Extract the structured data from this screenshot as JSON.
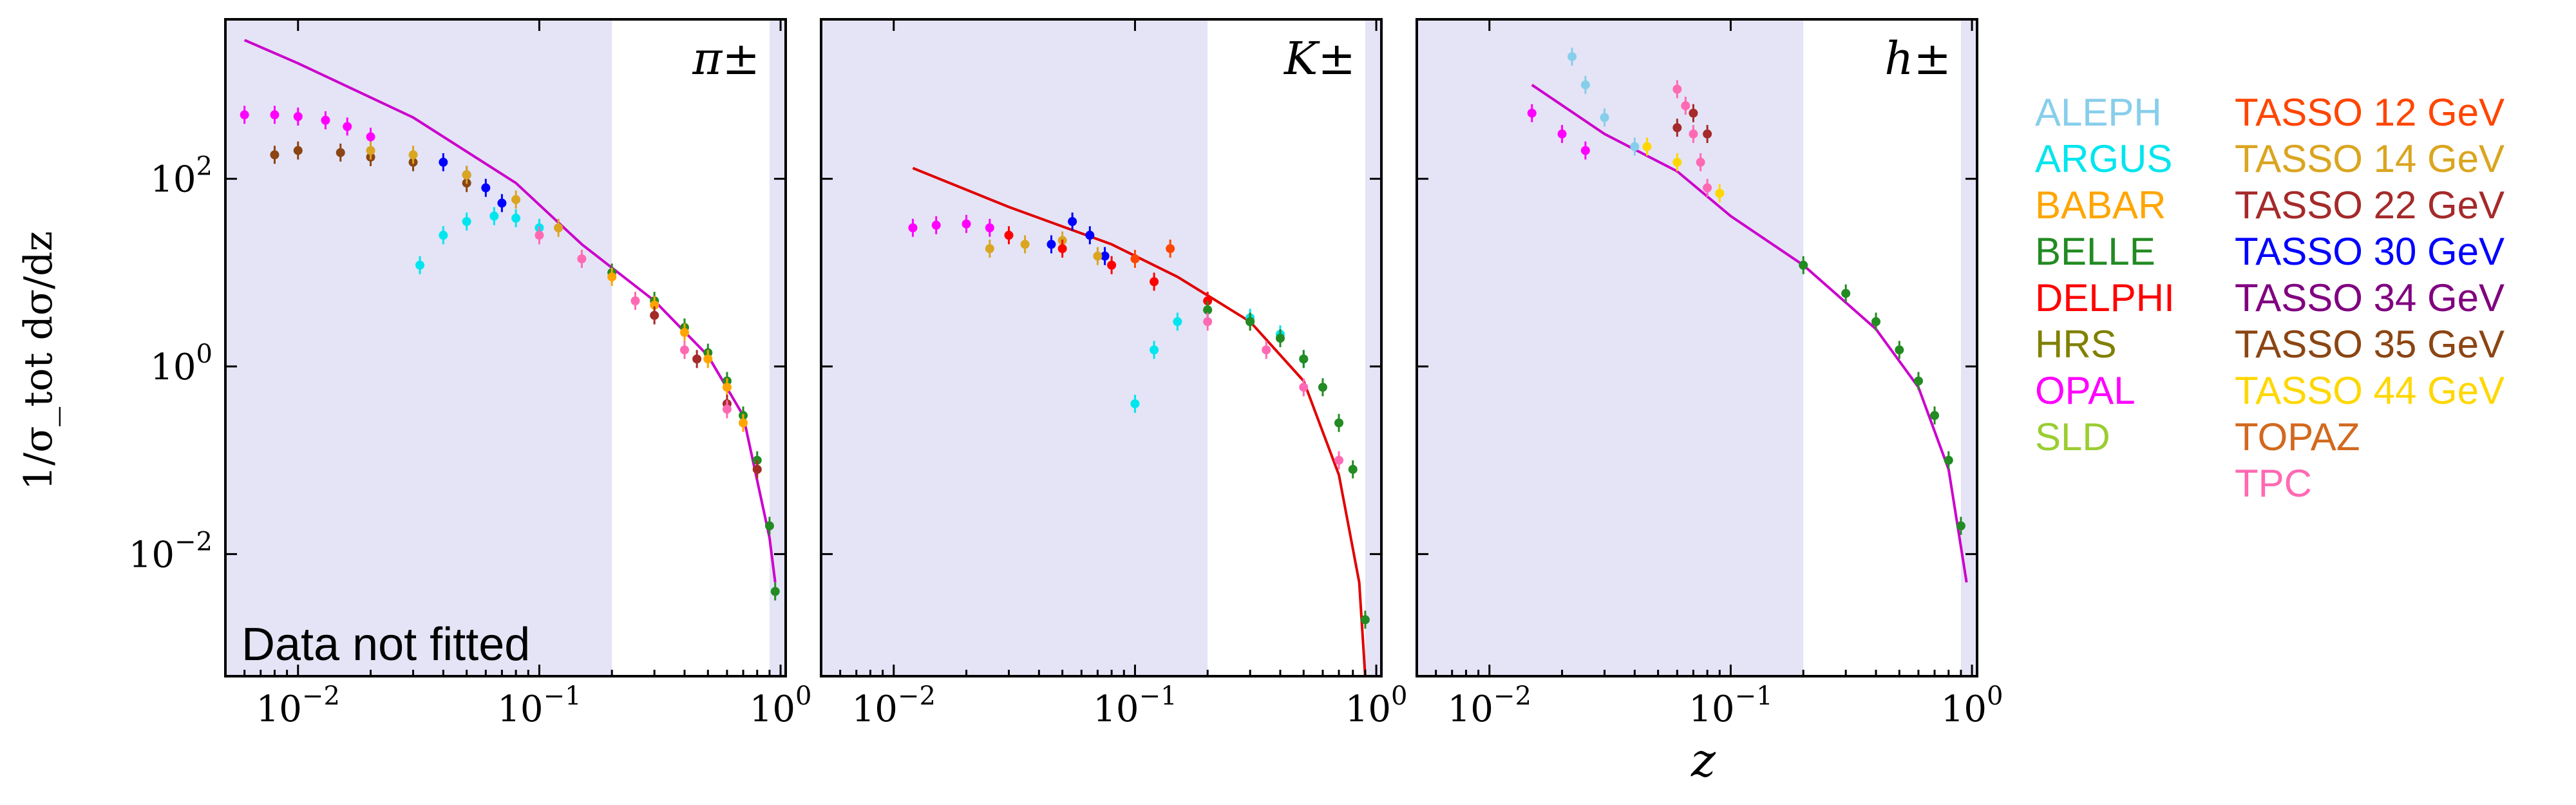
{
  "chart_data": {
    "type": "scatter",
    "xlabel": "z",
    "ylabel": "1/σ_tot dσ/dz",
    "x_scale": "log",
    "y_scale": "log",
    "xlim": [
      0.005,
      1.05
    ],
    "ylim": [
      0.0005,
      5000
    ],
    "xticks": [
      "10^-2",
      "10^-1",
      "10^0"
    ],
    "yticks": [
      "10^2",
      "10^0",
      "10^-2"
    ],
    "fitted_region_z": [
      0.2,
      0.9
    ],
    "annotation": "Data not fitted",
    "panels": [
      {
        "label": "π±",
        "theory": [
          [
            0.006,
            3000
          ],
          [
            0.01,
            1700
          ],
          [
            0.03,
            450
          ],
          [
            0.08,
            90
          ],
          [
            0.15,
            20
          ],
          [
            0.3,
            5
          ],
          [
            0.5,
            1.3
          ],
          [
            0.7,
            0.3
          ],
          [
            0.9,
            0.015
          ],
          [
            0.95,
            0.005
          ]
        ],
        "series": [
          {
            "name": "OPAL",
            "x": [
              0.006,
              0.008,
              0.01,
              0.013,
              0.016,
              0.02
            ],
            "y": [
              480,
              480,
              460,
              420,
              360,
              280
            ]
          },
          {
            "name": "ARGUS",
            "x": [
              0.032,
              0.04,
              0.05,
              0.065,
              0.08,
              0.1
            ],
            "y": [
              12,
              25,
              35,
              40,
              38,
              30
            ]
          },
          {
            "name": "TASSO 35 GeV",
            "x": [
              0.008,
              0.01,
              0.015,
              0.02,
              0.03,
              0.05
            ],
            "y": [
              180,
              200,
              190,
              170,
              150,
              90
            ]
          },
          {
            "name": "TASSO 30 GeV",
            "x": [
              0.04,
              0.05,
              0.06,
              0.07
            ],
            "y": [
              150,
              110,
              80,
              55
            ]
          },
          {
            "name": "TASSO 14 GeV",
            "x": [
              0.02,
              0.03,
              0.05,
              0.08,
              0.12
            ],
            "y": [
              200,
              180,
              110,
              60,
              30
            ]
          },
          {
            "name": "BELLE",
            "x": [
              0.2,
              0.3,
              0.4,
              0.5,
              0.6,
              0.7,
              0.8,
              0.9,
              0.95
            ],
            "y": [
              10,
              5,
              2.6,
              1.4,
              0.7,
              0.3,
              0.1,
              0.02,
              0.004
            ]
          },
          {
            "name": "BABAR",
            "x": [
              0.2,
              0.3,
              0.4,
              0.5,
              0.6,
              0.7,
              0.8
            ],
            "y": [
              9,
              4.5,
              2.3,
              1.2,
              0.6,
              0.25,
              0.08
            ]
          },
          {
            "name": "TASSO 22 GeV",
            "x": [
              0.3,
              0.45,
              0.6,
              0.8
            ],
            "y": [
              3.5,
              1.2,
              0.4,
              0.08
            ]
          },
          {
            "name": "TPC",
            "x": [
              0.1,
              0.15,
              0.25,
              0.4,
              0.6
            ],
            "y": [
              25,
              14,
              5,
              1.5,
              0.35
            ]
          }
        ]
      },
      {
        "label": "K±",
        "theory": [
          [
            0.012,
            130
          ],
          [
            0.03,
            50
          ],
          [
            0.08,
            20
          ],
          [
            0.15,
            9
          ],
          [
            0.3,
            3
          ],
          [
            0.5,
            0.7
          ],
          [
            0.7,
            0.07
          ],
          [
            0.85,
            0.005
          ],
          [
            0.9,
            0.0005
          ]
        ],
        "series": [
          {
            "name": "OPAL",
            "x": [
              0.012,
              0.015,
              0.02,
              0.025
            ],
            "y": [
              30,
              32,
              33,
              30
            ]
          },
          {
            "name": "TASSO 30 GeV",
            "x": [
              0.045,
              0.055,
              0.065,
              0.075
            ],
            "y": [
              20,
              35,
              25,
              15
            ]
          },
          {
            "name": "TASSO 14 GeV",
            "x": [
              0.025,
              0.035,
              0.05,
              0.07
            ],
            "y": [
              18,
              20,
              22,
              15
            ]
          },
          {
            "name": "TASSO 12 GeV",
            "x": [
              0.1,
              0.14
            ],
            "y": [
              14,
              18
            ]
          },
          {
            "name": "ARGUS",
            "x": [
              0.1,
              0.12,
              0.15,
              0.2,
              0.3,
              0.4,
              0.5
            ],
            "y": [
              0.4,
              1.5,
              3,
              4,
              3.3,
              2.2,
              1.2
            ]
          },
          {
            "name": "DELPHI",
            "x": [
              0.03,
              0.05,
              0.08,
              0.12,
              0.2,
              0.3
            ],
            "y": [
              25,
              18,
              12,
              8,
              5,
              3
            ]
          },
          {
            "name": "BELLE",
            "x": [
              0.2,
              0.3,
              0.4,
              0.5,
              0.6,
              0.7,
              0.8,
              0.9
            ],
            "y": [
              4,
              3,
              2,
              1.2,
              0.6,
              0.25,
              0.08,
              0.002
            ]
          },
          {
            "name": "TPC",
            "x": [
              0.2,
              0.35,
              0.5,
              0.7
            ],
            "y": [
              3,
              1.5,
              0.6,
              0.1
            ]
          }
        ]
      },
      {
        "label": "h±",
        "theory": [
          [
            0.015,
            1000
          ],
          [
            0.03,
            300
          ],
          [
            0.06,
            120
          ],
          [
            0.1,
            40
          ],
          [
            0.2,
            12
          ],
          [
            0.4,
            2.5
          ],
          [
            0.6,
            0.6
          ],
          [
            0.8,
            0.08
          ],
          [
            0.95,
            0.005
          ]
        ],
        "series": [
          {
            "name": "TPC",
            "x": [
              0.06,
              0.065,
              0.07,
              0.075,
              0.08
            ],
            "y": [
              900,
              600,
              300,
              150,
              80
            ]
          },
          {
            "name": "OPAL",
            "x": [
              0.015,
              0.02,
              0.025
            ],
            "y": [
              500,
              300,
              200
            ]
          },
          {
            "name": "ALEPH",
            "x": [
              0.022,
              0.025,
              0.03,
              0.04
            ],
            "y": [
              2000,
              1000,
              450,
              220
            ]
          },
          {
            "name": "TASSO 22 GeV",
            "x": [
              0.06,
              0.07,
              0.08
            ],
            "y": [
              350,
              500,
              300
            ]
          },
          {
            "name": "TASSO 44 GeV",
            "x": [
              0.045,
              0.06,
              0.09
            ],
            "y": [
              220,
              150,
              70
            ]
          },
          {
            "name": "BELLE",
            "x": [
              0.2,
              0.3,
              0.4,
              0.5,
              0.6,
              0.7,
              0.8,
              0.9
            ],
            "y": [
              12,
              6,
              3,
              1.5,
              0.7,
              0.3,
              0.1,
              0.02
            ]
          }
        ]
      }
    ]
  },
  "legend": {
    "col1": [
      {
        "name": "ALEPH",
        "color": "#87ceeb"
      },
      {
        "name": "ARGUS",
        "color": "#00e5ee"
      },
      {
        "name": "BABAR",
        "color": "#ffa500"
      },
      {
        "name": "BELLE",
        "color": "#228b22"
      },
      {
        "name": "DELPHI",
        "color": "#ff0000"
      },
      {
        "name": "HRS",
        "color": "#808000"
      },
      {
        "name": "OPAL",
        "color": "#ff00ff"
      },
      {
        "name": "SLD",
        "color": "#9acd32"
      }
    ],
    "col2": [
      {
        "name": "TASSO 12 GeV",
        "color": "#ff4500"
      },
      {
        "name": "TASSO 14 GeV",
        "color": "#daa520"
      },
      {
        "name": "TASSO 22 GeV",
        "color": "#a52a2a"
      },
      {
        "name": "TASSO 30 GeV",
        "color": "#0000ff"
      },
      {
        "name": "TASSO 34 GeV",
        "color": "#800080"
      },
      {
        "name": "TASSO 35 GeV",
        "color": "#8b4513"
      },
      {
        "name": "TASSO 44 GeV",
        "color": "#ffd700"
      },
      {
        "name": "TOPAZ",
        "color": "#d2691e"
      },
      {
        "name": "TPC",
        "color": "#ff69b4"
      }
    ]
  },
  "colors": {
    "shade": "#e4e4f6",
    "theory_pi": "#cc00cc",
    "theory_k": "#e00000",
    "theory_h": "#cc00cc"
  }
}
